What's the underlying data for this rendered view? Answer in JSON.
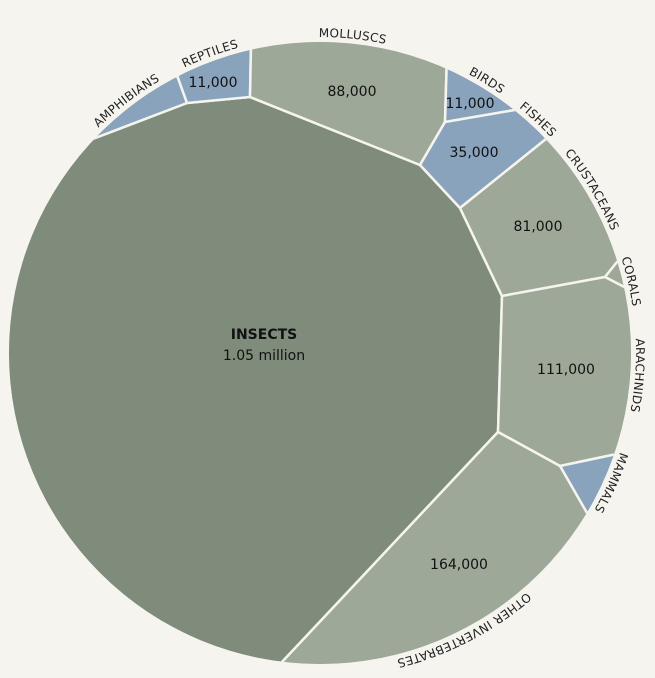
{
  "chart_data": {
    "type": "voronoi-treemap",
    "colors": {
      "insects": "#7f8c7c",
      "invertebrates": "#9ea898",
      "vertebrates": "#8aa3bd",
      "background": "#f5f4ef"
    },
    "cells": [
      {
        "key": "insects",
        "label": "INSECTS",
        "value_text": "1.05 million",
        "value": 1050000,
        "group": "invertebrates"
      },
      {
        "key": "amphibians",
        "label": "AMPHIBIANS",
        "value_text": null,
        "value": null,
        "group": "vertebrates"
      },
      {
        "key": "reptiles",
        "label": "REPTILES",
        "value_text": "11,000",
        "value": 11000,
        "group": "vertebrates"
      },
      {
        "key": "molluscs",
        "label": "MOLLUSCS",
        "value_text": "88,000",
        "value": 88000,
        "group": "invertebrates"
      },
      {
        "key": "birds",
        "label": "BIRDS",
        "value_text": "11,000",
        "value": 11000,
        "group": "vertebrates"
      },
      {
        "key": "fishes",
        "label": "FISHES",
        "value_text": "35,000",
        "value": 35000,
        "group": "vertebrates"
      },
      {
        "key": "crustaceans",
        "label": "CRUSTACEANS",
        "value_text": "81,000",
        "value": 81000,
        "group": "invertebrates"
      },
      {
        "key": "corals",
        "label": "CORALS",
        "value_text": null,
        "value": null,
        "group": "invertebrates"
      },
      {
        "key": "arachnids",
        "label": "ARACHNIDS",
        "value_text": "111,000",
        "value": 111000,
        "group": "invertebrates"
      },
      {
        "key": "mammals",
        "label": "MAMMALS",
        "value_text": null,
        "value": null,
        "group": "vertebrates"
      },
      {
        "key": "other",
        "label": "OTHER INVERTEBRATES",
        "value_text": "164,000",
        "value": 164000,
        "group": "invertebrates"
      }
    ]
  }
}
